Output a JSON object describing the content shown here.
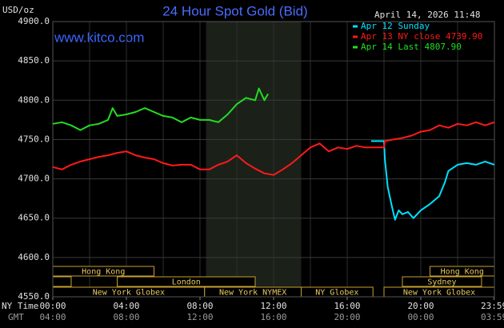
{
  "chart_data": {
    "type": "line",
    "title": "24 Hour Spot Gold (Bid)",
    "site": "www.kitco.com",
    "unit_label": "USD/oz",
    "timestamp": "April 14, 2026 11:48",
    "x_row_label": "NY Time",
    "x2_row_label": "GMT",
    "xlim": [
      0,
      24
    ],
    "ylim": [
      4550,
      4900
    ],
    "grid": true,
    "grid_x_step": 2,
    "shaded_range": [
      8.33,
      13.5
    ],
    "yticks": [
      {
        "value": 4550,
        "label": "4550.0"
      },
      {
        "value": 4600,
        "label": "4600.0"
      },
      {
        "value": 4650,
        "label": "4650.0"
      },
      {
        "value": 4700,
        "label": "4700.0"
      },
      {
        "value": 4750,
        "label": "4750.0"
      },
      {
        "value": 4800,
        "label": "4800.0"
      },
      {
        "value": 4850,
        "label": "4850.0"
      },
      {
        "value": 4900,
        "label": "4900.0"
      }
    ],
    "xticks": [
      {
        "value": 0,
        "label": "00:00"
      },
      {
        "value": 4,
        "label": "04:00"
      },
      {
        "value": 8,
        "label": "08:00"
      },
      {
        "value": 12,
        "label": "12:00"
      },
      {
        "value": 16,
        "label": "16:00"
      },
      {
        "value": 20,
        "label": "20:00"
      },
      {
        "value": 23.98,
        "label": "23:59"
      }
    ],
    "x2_labels": [
      "04:00",
      "08:00",
      "12:00",
      "16:00",
      "20:00",
      "00:00",
      "03:59"
    ],
    "series": [
      {
        "name": "Apr 12 Sunday",
        "color": "#00e0ff",
        "x": [
          17.3,
          18,
          18.05,
          18.2,
          18.4,
          18.6,
          18.8,
          19,
          19.3,
          19.6,
          20,
          20.5,
          21,
          21.3,
          21.5,
          22,
          22.5,
          23,
          23.5,
          24
        ],
        "values": [
          4748,
          4748,
          4725,
          4690,
          4668,
          4648,
          4660,
          4655,
          4658,
          4650,
          4660,
          4668,
          4678,
          4695,
          4710,
          4718,
          4720,
          4718,
          4722,
          4718
        ]
      },
      {
        "name": "Apr 13 NY close 4739.90",
        "color": "#ff1a1a",
        "x": [
          0,
          0.5,
          1,
          1.5,
          2,
          2.5,
          3,
          3.5,
          4,
          4.5,
          5,
          5.5,
          6,
          6.5,
          7,
          7.5,
          8,
          8.5,
          9,
          9.5,
          10,
          10.5,
          11,
          11.5,
          12,
          12.5,
          13,
          13.5,
          14,
          14.5,
          15,
          15.5,
          16,
          16.5,
          17,
          17.5,
          18,
          18.05,
          18.5,
          19,
          19.5,
          20,
          20.5,
          21,
          21.5,
          22,
          22.5,
          23,
          23.5,
          24
        ],
        "values": [
          4715,
          4712,
          4718,
          4722,
          4725,
          4728,
          4730,
          4733,
          4735,
          4730,
          4727,
          4725,
          4720,
          4717,
          4718,
          4718,
          4712,
          4712,
          4718,
          4722,
          4730,
          4720,
          4713,
          4707,
          4705,
          4712,
          4720,
          4730,
          4740,
          4745,
          4735,
          4740,
          4738,
          4742,
          4740,
          4740,
          4740,
          4748,
          4750,
          4752,
          4755,
          4760,
          4762,
          4768,
          4765,
          4770,
          4768,
          4772,
          4768,
          4772
        ]
      },
      {
        "name": "Apr 14 Last 4807.90",
        "color": "#22dd22",
        "x": [
          0,
          0.5,
          1,
          1.5,
          2,
          2.5,
          3,
          3.25,
          3.5,
          4,
          4.5,
          5,
          5.5,
          6,
          6.5,
          7,
          7.5,
          8,
          8.5,
          9,
          9.5,
          10,
          10.5,
          11,
          11.2,
          11.5,
          11.7
        ],
        "values": [
          4770,
          4772,
          4768,
          4762,
          4768,
          4770,
          4775,
          4790,
          4780,
          4782,
          4785,
          4790,
          4785,
          4780,
          4778,
          4772,
          4778,
          4775,
          4775,
          4772,
          4782,
          4795,
          4803,
          4800,
          4815,
          4800,
          4808
        ]
      }
    ],
    "sessions": [
      {
        "label": "Hong Kong",
        "start": 0,
        "end": 5.5,
        "row": 0
      },
      {
        "label": null,
        "start": 0,
        "end": 1,
        "row": 1
      },
      {
        "label": "London",
        "start": 3.5,
        "end": 11,
        "row": 1
      },
      {
        "label": "New York Globex",
        "start": 0,
        "end": 8.25,
        "row": 2
      },
      {
        "label": "New York NYMEX",
        "start": 8.25,
        "end": 13.5,
        "row": 2
      },
      {
        "label": "NY Globex",
        "start": 13.5,
        "end": 17.4,
        "row": 2
      },
      {
        "label": "Hong Kong",
        "start": 20.5,
        "end": 24,
        "row": 0
      },
      {
        "label": "Sydney",
        "start": 19,
        "end": 23.3,
        "row": 1
      },
      {
        "label": "New York Globex",
        "start": 18,
        "end": 24,
        "row": 2
      }
    ]
  }
}
